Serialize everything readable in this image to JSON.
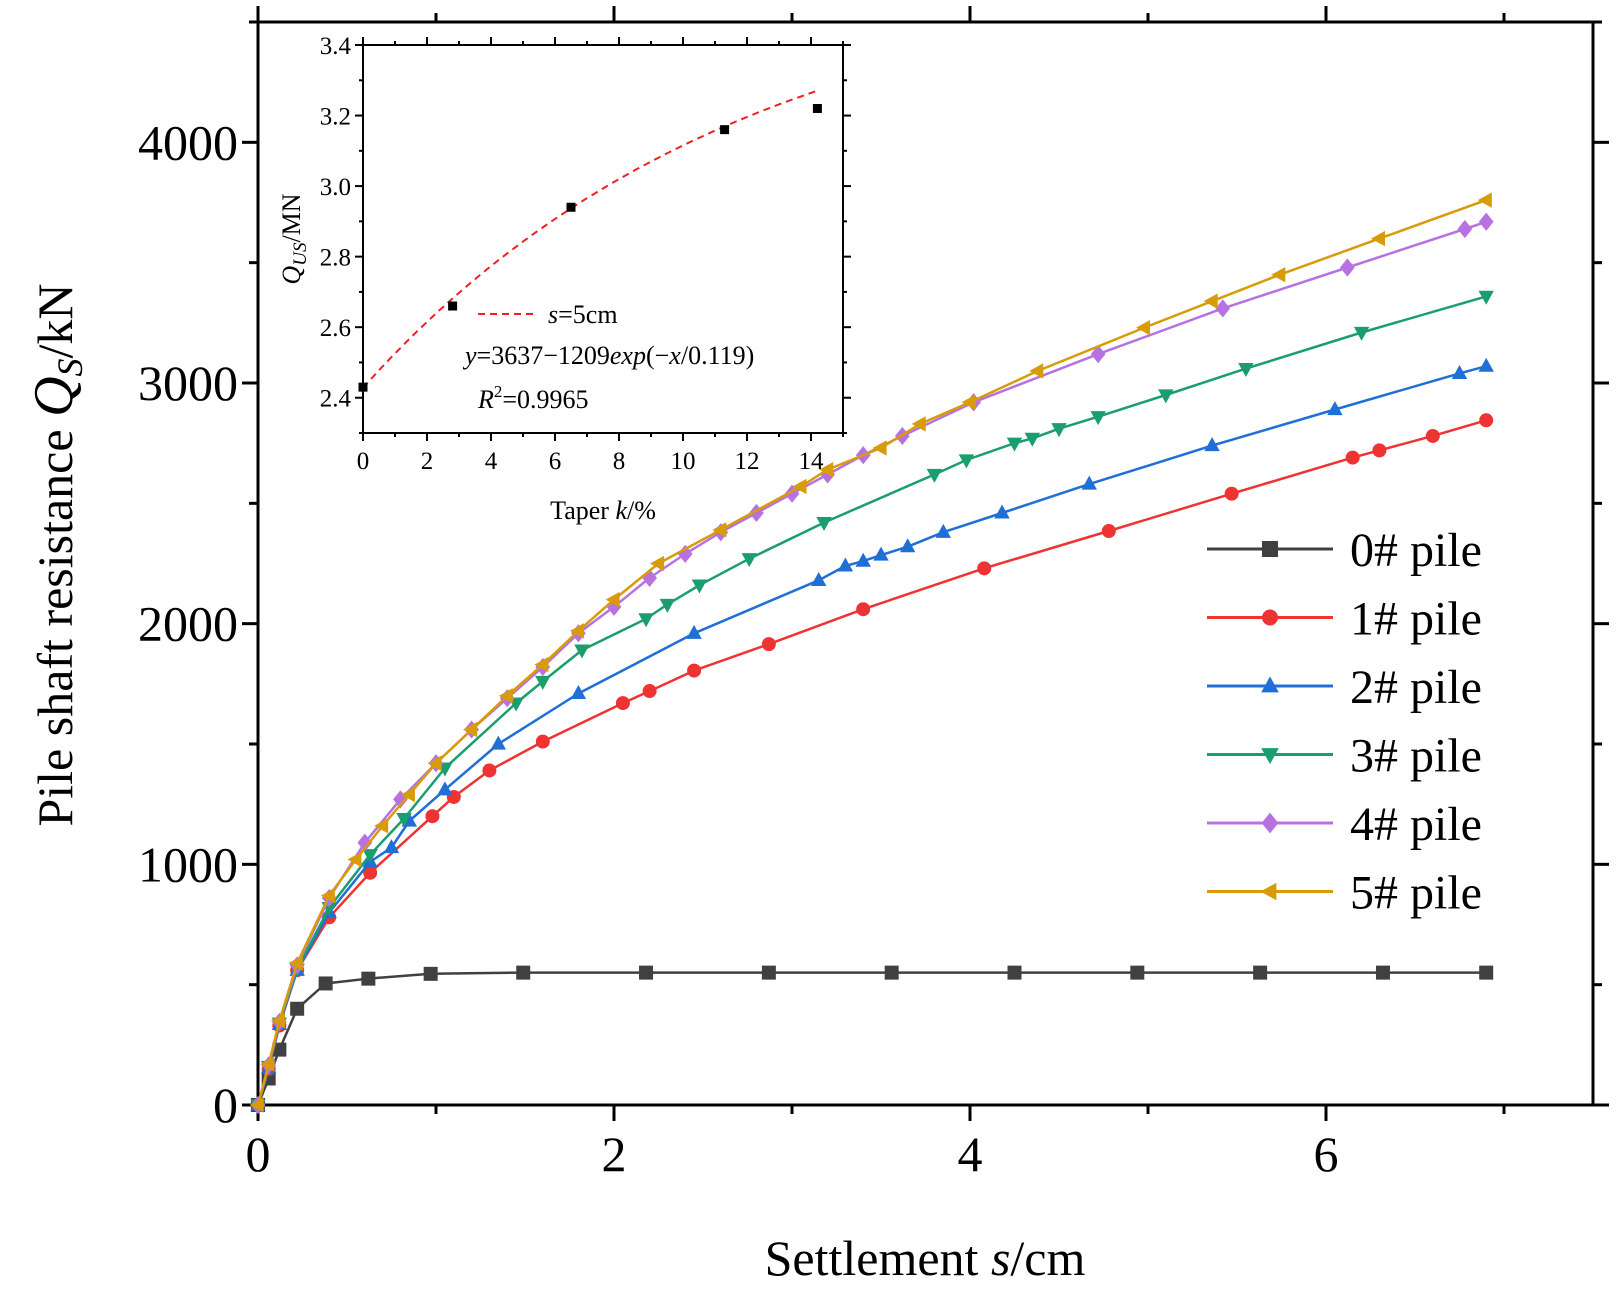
{
  "chart_data": [
    {
      "type": "line",
      "xlabel": "Settlement s/cm",
      "ylabel": "Pile shaft resistance Qs/kN",
      "xlim": [
        0,
        7.5
      ],
      "ylim": [
        0,
        4500
      ],
      "xticks": [
        0,
        2,
        4,
        6
      ],
      "yticks": [
        0,
        1000,
        2000,
        3000,
        4000
      ],
      "legend_position": "right-middle",
      "series": [
        {
          "name": "0# pile",
          "color": "#404040",
          "marker": "square",
          "x": [
            0,
            0.06,
            0.12,
            0.22,
            0.38,
            0.62,
            0.97,
            1.49,
            2.18,
            2.87,
            3.56,
            4.25,
            4.94,
            5.63,
            6.32,
            6.9
          ],
          "y": [
            0,
            110,
            230,
            400,
            505,
            525,
            545,
            550,
            550,
            550,
            550,
            550,
            550,
            550,
            550,
            550
          ]
        },
        {
          "name": "1# pile",
          "color": "#ee3333",
          "marker": "circle",
          "x": [
            0,
            0.06,
            0.12,
            0.22,
            0.4,
            0.63,
            0.98,
            1.1,
            1.3,
            1.6,
            2.05,
            2.2,
            2.45,
            2.87,
            3.4,
            4.08,
            4.78,
            5.47,
            6.15,
            6.3,
            6.6,
            6.9
          ],
          "y": [
            0,
            150,
            330,
            560,
            780,
            965,
            1200,
            1280,
            1390,
            1510,
            1670,
            1720,
            1805,
            1915,
            2060,
            2230,
            2385,
            2540,
            2690,
            2720,
            2780,
            2845
          ]
        },
        {
          "name": "2# pile",
          "color": "#1f6fd6",
          "marker": "triangle-up",
          "x": [
            0,
            0.06,
            0.12,
            0.22,
            0.4,
            0.63,
            0.75,
            0.85,
            1.05,
            1.35,
            1.8,
            2.45,
            3.15,
            3.3,
            3.4,
            3.5,
            3.65,
            3.85,
            4.18,
            4.67,
            5.36,
            6.05,
            6.75,
            6.9
          ],
          "y": [
            0,
            155,
            335,
            560,
            800,
            1010,
            1070,
            1180,
            1310,
            1500,
            1710,
            1960,
            2180,
            2240,
            2260,
            2285,
            2320,
            2380,
            2460,
            2580,
            2740,
            2890,
            3040,
            3070
          ]
        },
        {
          "name": "3# pile",
          "color": "#1a9e6e",
          "marker": "triangle-down",
          "x": [
            0,
            0.06,
            0.12,
            0.22,
            0.4,
            0.63,
            0.82,
            1.05,
            1.45,
            1.6,
            1.82,
            2.18,
            2.3,
            2.48,
            2.76,
            3.18,
            3.8,
            3.98,
            4.25,
            4.35,
            4.5,
            4.72,
            5.1,
            5.55,
            6.2,
            6.9
          ],
          "y": [
            0,
            160,
            340,
            565,
            820,
            1040,
            1190,
            1400,
            1670,
            1760,
            1890,
            2020,
            2080,
            2160,
            2270,
            2420,
            2620,
            2680,
            2750,
            2770,
            2810,
            2860,
            2950,
            3060,
            3210,
            3360
          ]
        },
        {
          "name": "4# pile",
          "color": "#b772e0",
          "marker": "diamond",
          "x": [
            0,
            0.06,
            0.12,
            0.22,
            0.4,
            0.6,
            0.8,
            1.0,
            1.2,
            1.4,
            1.6,
            1.8,
            2.0,
            2.2,
            2.4,
            2.6,
            2.8,
            3.0,
            3.2,
            3.4,
            3.62,
            4.02,
            4.72,
            5.42,
            6.12,
            6.78,
            6.9
          ],
          "y": [
            0,
            165,
            345,
            580,
            860,
            1090,
            1270,
            1420,
            1560,
            1690,
            1820,
            1960,
            2070,
            2190,
            2290,
            2380,
            2460,
            2540,
            2620,
            2700,
            2780,
            2920,
            3120,
            3310,
            3480,
            3640,
            3670
          ]
        },
        {
          "name": "5# pile",
          "color": "#d89b0a",
          "marker": "triangle-left",
          "x": [
            0,
            0.06,
            0.12,
            0.22,
            0.4,
            0.55,
            0.7,
            0.85,
            1.0,
            1.2,
            1.4,
            1.6,
            1.8,
            2.0,
            2.25,
            2.6,
            3.05,
            3.2,
            3.5,
            3.72,
            4.0,
            4.38,
            4.98,
            5.36,
            5.74,
            6.3,
            6.9
          ],
          "y": [
            0,
            170,
            350,
            590,
            870,
            1020,
            1160,
            1290,
            1420,
            1560,
            1700,
            1830,
            1970,
            2100,
            2250,
            2390,
            2570,
            2640,
            2730,
            2830,
            2920,
            3050,
            3230,
            3340,
            3450,
            3600,
            3760
          ]
        }
      ]
    },
    {
      "type": "scatter",
      "xlabel": "Taper k/%",
      "ylabel": "Qus/MN",
      "xlim": [
        0,
        15
      ],
      "ylim": [
        2.3,
        3.4
      ],
      "xticks": [
        0,
        2,
        4,
        6,
        8,
        10,
        12,
        14
      ],
      "yticks": [
        2.4,
        2.6,
        2.8,
        3.0,
        3.2,
        3.4
      ],
      "points": {
        "x": [
          0,
          2.8,
          6.5,
          11.3,
          14.2
        ],
        "y": [
          2.43,
          2.66,
          2.94,
          3.16,
          3.22
        ]
      },
      "fit": {
        "label": "s=5cm",
        "equation": "y=3637−1209exp(−x/0.119)",
        "r2": "R2=0.9965",
        "color": "#ee2222",
        "A": 3.637,
        "B": 1.209,
        "t": 11.9,
        "x_range": [
          0,
          14.2
        ]
      }
    }
  ],
  "main": {
    "xlabel_parts": [
      "Settlement ",
      "s",
      "/cm"
    ],
    "ylabel_parts": [
      "Pile shaft resistance ",
      "Q",
      "S",
      "/kN"
    ]
  },
  "inset": {
    "xlabel_parts": [
      "Taper ",
      "k",
      "/%"
    ],
    "ylabel_parts": [
      "Q",
      "US",
      "/MN"
    ],
    "legend_parts": [
      "s",
      "=5cm"
    ],
    "eq_parts": [
      "y",
      "=3637−1209",
      "exp",
      "(−",
      "x",
      "/0.119)"
    ],
    "r2_parts": [
      "R",
      "2",
      "=0.9965"
    ]
  }
}
